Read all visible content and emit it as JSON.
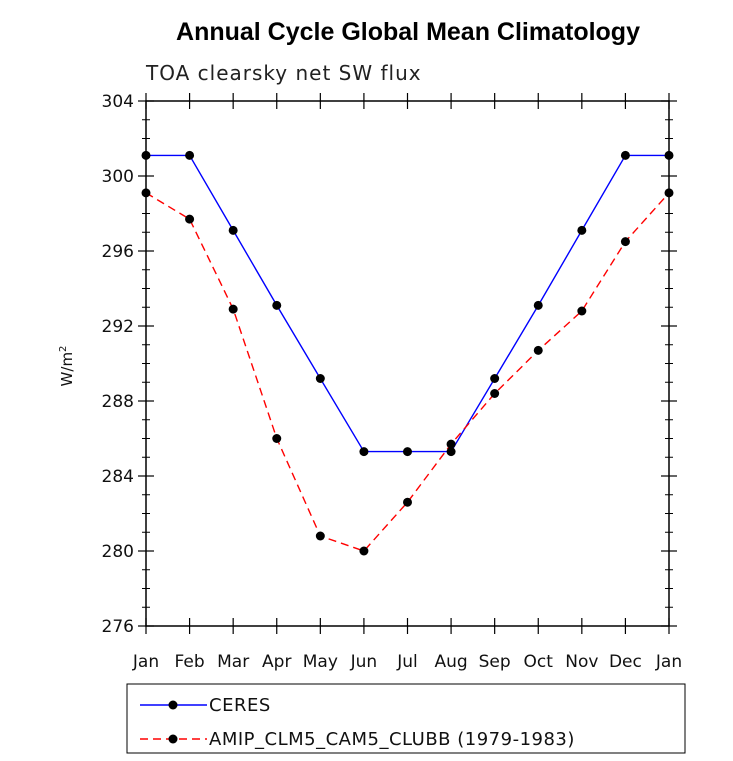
{
  "chart_data": {
    "type": "line",
    "title": "Annual Cycle Global Mean Climatology",
    "subtitle": "TOA clearsky net SW flux",
    "ylabel": "W/m",
    "ylabel_sup": "2",
    "ylim": [
      276,
      304
    ],
    "yticks": [
      "276",
      "280",
      "284",
      "288",
      "292",
      "296",
      "300",
      "304"
    ],
    "ytick_values": [
      276,
      280,
      284,
      288,
      292,
      296,
      300,
      304
    ],
    "categories": [
      "Jan",
      "Feb",
      "Mar",
      "Apr",
      "May",
      "Jun",
      "Jul",
      "Aug",
      "Sep",
      "Oct",
      "Nov",
      "Dec",
      "Jan"
    ],
    "grid": false,
    "legend_position": "bottom",
    "series": [
      {
        "name": "CERES",
        "color": "#0000ff",
        "style": "solid",
        "marker": "circle",
        "values": [
          301.1,
          301.1,
          297.1,
          293.1,
          289.2,
          285.3,
          285.3,
          285.3,
          289.2,
          293.1,
          297.1,
          301.1,
          301.1
        ]
      },
      {
        "name": "AMIP_CLM5_CAM5_CLUBB (1979-1983)",
        "color": "#ff0000",
        "style": "dashed",
        "marker": "circle",
        "values": [
          299.1,
          297.7,
          292.9,
          286.0,
          280.8,
          280.0,
          282.6,
          285.7,
          288.4,
          290.7,
          292.8,
          296.5,
          299.1
        ]
      }
    ]
  }
}
